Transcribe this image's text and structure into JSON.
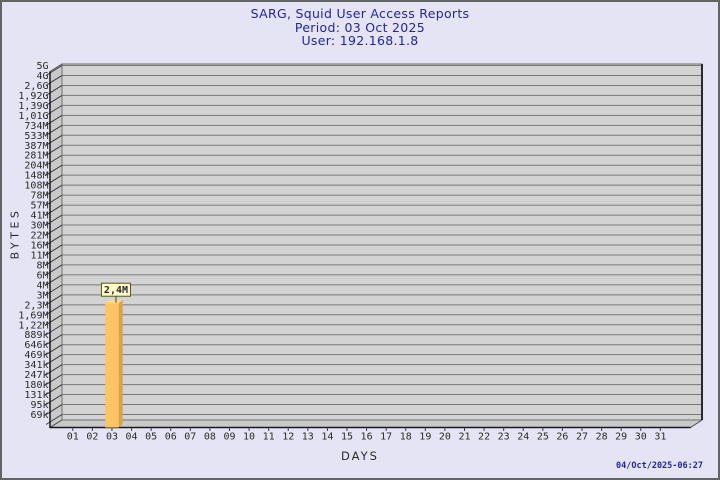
{
  "window": {
    "background": "#E4E4F4",
    "border_color": "#646464"
  },
  "header": {
    "title": "SARG, Squid User Access Reports",
    "period": "Period: 03 Oct 2025",
    "user": "User: 192.168.1.8"
  },
  "footer": {
    "generated": "04/Oct/2025-06:27"
  },
  "chart_data": {
    "type": "bar",
    "title": "SARG, Squid User Access Reports",
    "subtitle_lines": [
      "Period: 03 Oct 2025",
      "User: 192.168.1.8"
    ],
    "xlabel": "DAYS",
    "ylabel": "BYTES",
    "y_scale": "logarithmic",
    "grid": true,
    "legend_position": "none",
    "ylim_bytes": [
      69000,
      5000000000
    ],
    "categories": [
      "01",
      "02",
      "03",
      "04",
      "05",
      "06",
      "07",
      "08",
      "09",
      "10",
      "11",
      "12",
      "13",
      "14",
      "15",
      "16",
      "17",
      "18",
      "19",
      "20",
      "21",
      "22",
      "23",
      "24",
      "25",
      "26",
      "27",
      "28",
      "29",
      "30",
      "31"
    ],
    "values": [
      0,
      0,
      2400000,
      0,
      0,
      0,
      0,
      0,
      0,
      0,
      0,
      0,
      0,
      0,
      0,
      0,
      0,
      0,
      0,
      0,
      0,
      0,
      0,
      0,
      0,
      0,
      0,
      0,
      0,
      0,
      0
    ],
    "annotations": [
      {
        "category": "03",
        "label": "2,4M",
        "value_bytes": 2400000
      }
    ],
    "y_tick_labels": [
      "5G",
      "4G",
      "2,6G",
      "1,92G",
      "1,39G",
      "1,01G",
      "734M",
      "533M",
      "387M",
      "281M",
      "204M",
      "148M",
      "108M",
      "78M",
      "57M",
      "41M",
      "30M",
      "22M",
      "16M",
      "11M",
      "8M",
      "6M",
      "4M",
      "3M",
      "2,3M",
      "1,69M",
      "1,22M",
      "889k",
      "646k",
      "469k",
      "341k",
      "247k",
      "180k",
      "131k",
      "95k",
      "69k"
    ],
    "colors": {
      "title_text": "#2525A0",
      "plot_face": "#D3D3D3",
      "plot_side": "#C9C9C9",
      "gridline": "#787878",
      "axis_line": "#1A1A1A",
      "tick_text": "#2B2B2B",
      "bar_front": "#FBC466",
      "bar_side": "#DCA346",
      "bar_top": "#FDD98E",
      "annotation_bg": "#FFFFC9",
      "annotation_border": "#55551E",
      "timestamp_text": "#2525A0"
    }
  }
}
